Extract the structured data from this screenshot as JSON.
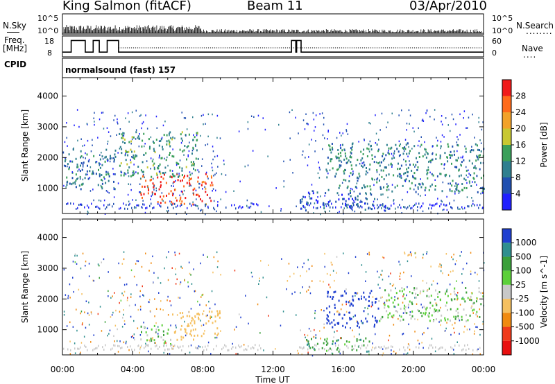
{
  "header": {
    "station": "King Salmon (fitACF)",
    "beam": "Beam 11",
    "date": "03/Apr/2010"
  },
  "nsky_panel": {
    "left_label": "N.Sky",
    "right_label": "N.Search",
    "right_line": "........",
    "left_ticks": [
      "10^5",
      "10^0"
    ],
    "right_ticks": [
      "10^5",
      "10^0"
    ]
  },
  "freq_panel": {
    "left_label_1": "Freq.",
    "left_label_2": "[MHz]",
    "left_ticks": [
      "18",
      "8"
    ],
    "right_label": "Nave",
    "right_line": "....",
    "right_ticks": [
      "60",
      "0"
    ]
  },
  "cpid_panel": {
    "label": "CPID",
    "program": "normalsound (fast) 157"
  },
  "chart_data": [
    {
      "type": "heatmap",
      "title": "",
      "ylabel": "Slant Range [km]",
      "xlabel": "Time UT",
      "x_ticks": [
        "00:00",
        "04:00",
        "08:00",
        "12:00",
        "16:00",
        "20:00",
        "00:00"
      ],
      "y_ticks": [
        "1000",
        "2000",
        "3000",
        "4000"
      ],
      "ylim": [
        180,
        4600
      ],
      "xlim_hours": [
        0,
        24
      ],
      "colorbar": {
        "label": "Power [dB]",
        "ticks": [
          "4",
          "8",
          "12",
          "16",
          "20",
          "24",
          "28"
        ],
        "range": [
          0,
          30
        ],
        "colors": [
          "#1f1fff",
          "#204fb0",
          "#2f7f8f",
          "#3a9f5a",
          "#c8c832",
          "#f2a22a",
          "#ff6a1a",
          "#f01a1a"
        ]
      },
      "features": [
        {
          "t0": 4.4,
          "t1": 8.6,
          "r0": 500,
          "r1": 1500,
          "level": 26,
          "desc": "strong band"
        },
        {
          "t0": 3.2,
          "t1": 7.8,
          "r0": 1400,
          "r1": 2900,
          "level": 12
        },
        {
          "t0": 0.0,
          "t1": 3.0,
          "r0": 1000,
          "r1": 2300,
          "level": 9
        },
        {
          "t0": 15.0,
          "t1": 24.0,
          "r0": 900,
          "r1": 2500,
          "level": 10
        },
        {
          "t0": 13.5,
          "t1": 18.5,
          "r0": 300,
          "r1": 900,
          "level": 6
        }
      ]
    },
    {
      "type": "heatmap",
      "title": "",
      "ylabel": "Slant Range [km]",
      "xlabel": "Time UT",
      "x_ticks": [
        "00:00",
        "04:00",
        "08:00",
        "12:00",
        "16:00",
        "20:00",
        "00:00"
      ],
      "y_ticks": [
        "1000",
        "2000",
        "3000",
        "4000"
      ],
      "ylim": [
        180,
        4600
      ],
      "xlim_hours": [
        0,
        24
      ],
      "colorbar": {
        "label": "Velocity [m s^-1]",
        "ticks": [
          "1000",
          "500",
          "100",
          "25",
          "-25",
          "-100",
          "-500",
          "-1000"
        ],
        "colors": [
          "#1f3fd0",
          "#2f8f8f",
          "#3a9f3a",
          "#5cd03a",
          "#c8c8c8",
          "#f5c060",
          "#f08a10",
          "#f03a1a",
          "#e81010"
        ]
      },
      "features": [
        {
          "t0": 6.2,
          "t1": 9.0,
          "r0": 700,
          "r1": 1650,
          "value": -300,
          "desc": "orange band"
        },
        {
          "t0": 4.4,
          "t1": 6.2,
          "r0": 500,
          "r1": 1200,
          "value": 0
        },
        {
          "t0": 15.0,
          "t1": 18.0,
          "r0": 1100,
          "r1": 2300,
          "value": 600,
          "desc": "blue/green patch"
        },
        {
          "t0": 18.0,
          "t1": 24.0,
          "r0": 1300,
          "r1": 2400,
          "value": 0
        },
        {
          "t0": 13.8,
          "t1": 17.5,
          "r0": 300,
          "r1": 800,
          "value": 80
        }
      ]
    }
  ],
  "colors": {
    "frame": "#000000",
    "background": "#ffffff"
  }
}
